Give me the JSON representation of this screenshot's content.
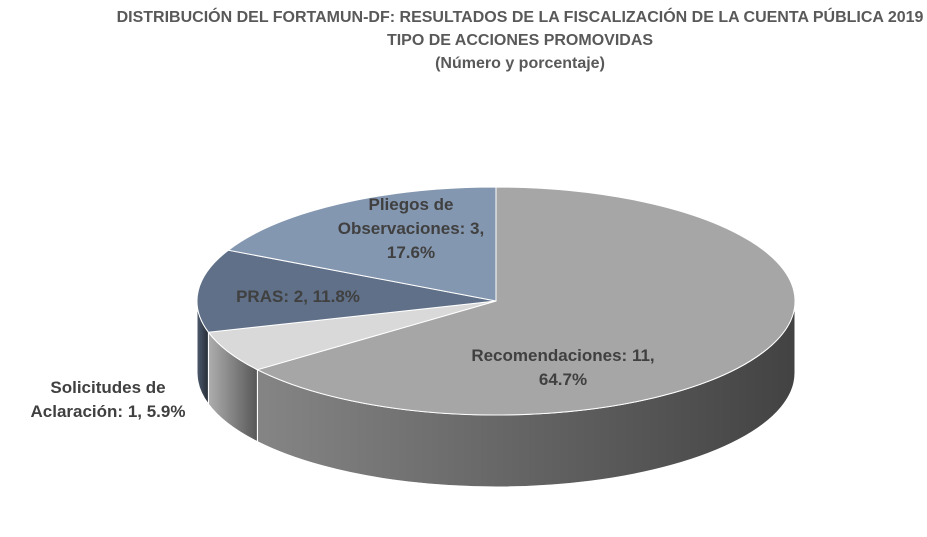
{
  "chart_data": {
    "type": "pie3d",
    "title": "DISTRIBUCIÓN DEL FORTAMUN-DF: RESULTADOS DE LA FISCALIZACIÓN DE LA CUENTA PÚBLICA 2019",
    "subtitle": [
      "TIPO DE ACCIONES PROMOVIDAS",
      "(Número y porcentaje)"
    ],
    "categories": [
      "Recomendaciones:",
      "Solicitudes de Aclaración:",
      "PRAS:",
      "Pliegos de Observaciones:"
    ],
    "values": [
      11,
      1,
      2,
      3
    ],
    "value_labels": [
      "11, 64.7%",
      "1, 5.9%",
      "2, 11.8%",
      "3, 17.6%"
    ],
    "colors": [
      "#a6a6a6",
      "#d9d9d9",
      "#5f7088",
      "#8497b0"
    ]
  }
}
